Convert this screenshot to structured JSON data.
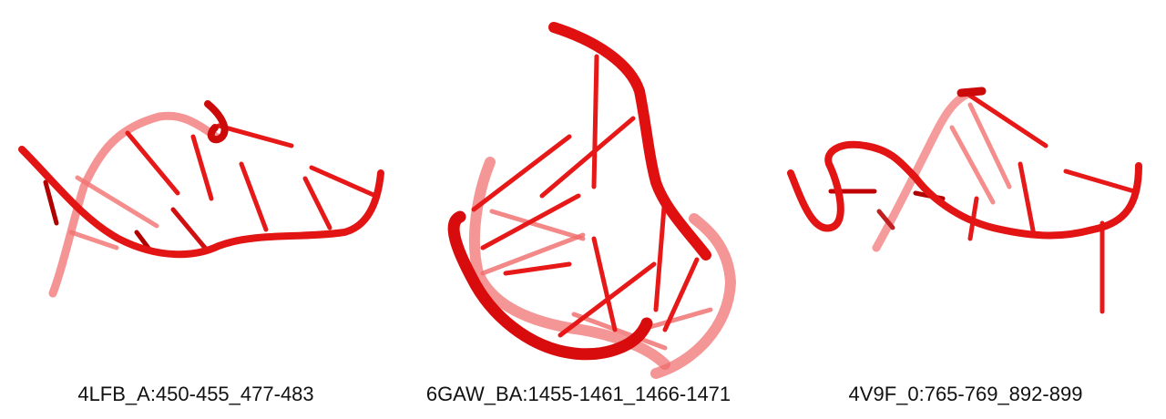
{
  "panels": [
    {
      "label": "4LFB_A:450-455_477-483"
    },
    {
      "label": "6GAW_BA:1455-1461_1466-1471"
    },
    {
      "label": "4V9F_0:765-769_892-899"
    }
  ],
  "colors": {
    "strand": "#e01010",
    "strand_dark": "#c00000",
    "strand_faded": "#f06060",
    "background": "#ffffff"
  }
}
